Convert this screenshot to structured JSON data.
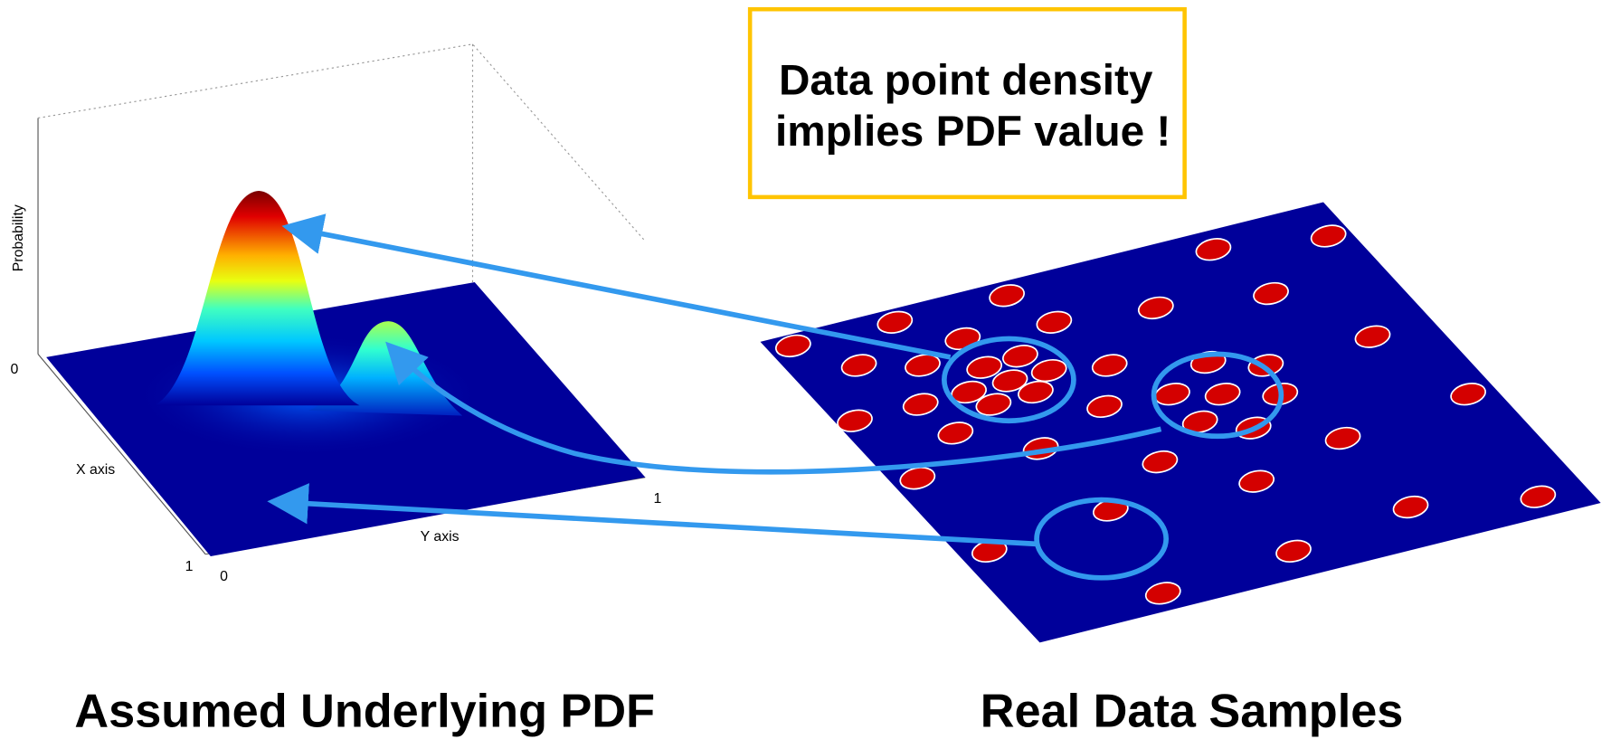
{
  "callout": {
    "lines": [
      "Data point density",
      "implies PDF value !"
    ]
  },
  "pdf_plot": {
    "z_axis_label": "Probability",
    "x_axis_label": "X axis",
    "y_axis_label": "Y axis",
    "ticks": {
      "z_min": 0,
      "y_max": 1,
      "x_max": 1,
      "origin": 0
    }
  },
  "captions": {
    "left": "Assumed Underlying PDF",
    "right": "Real Data Samples"
  }
}
